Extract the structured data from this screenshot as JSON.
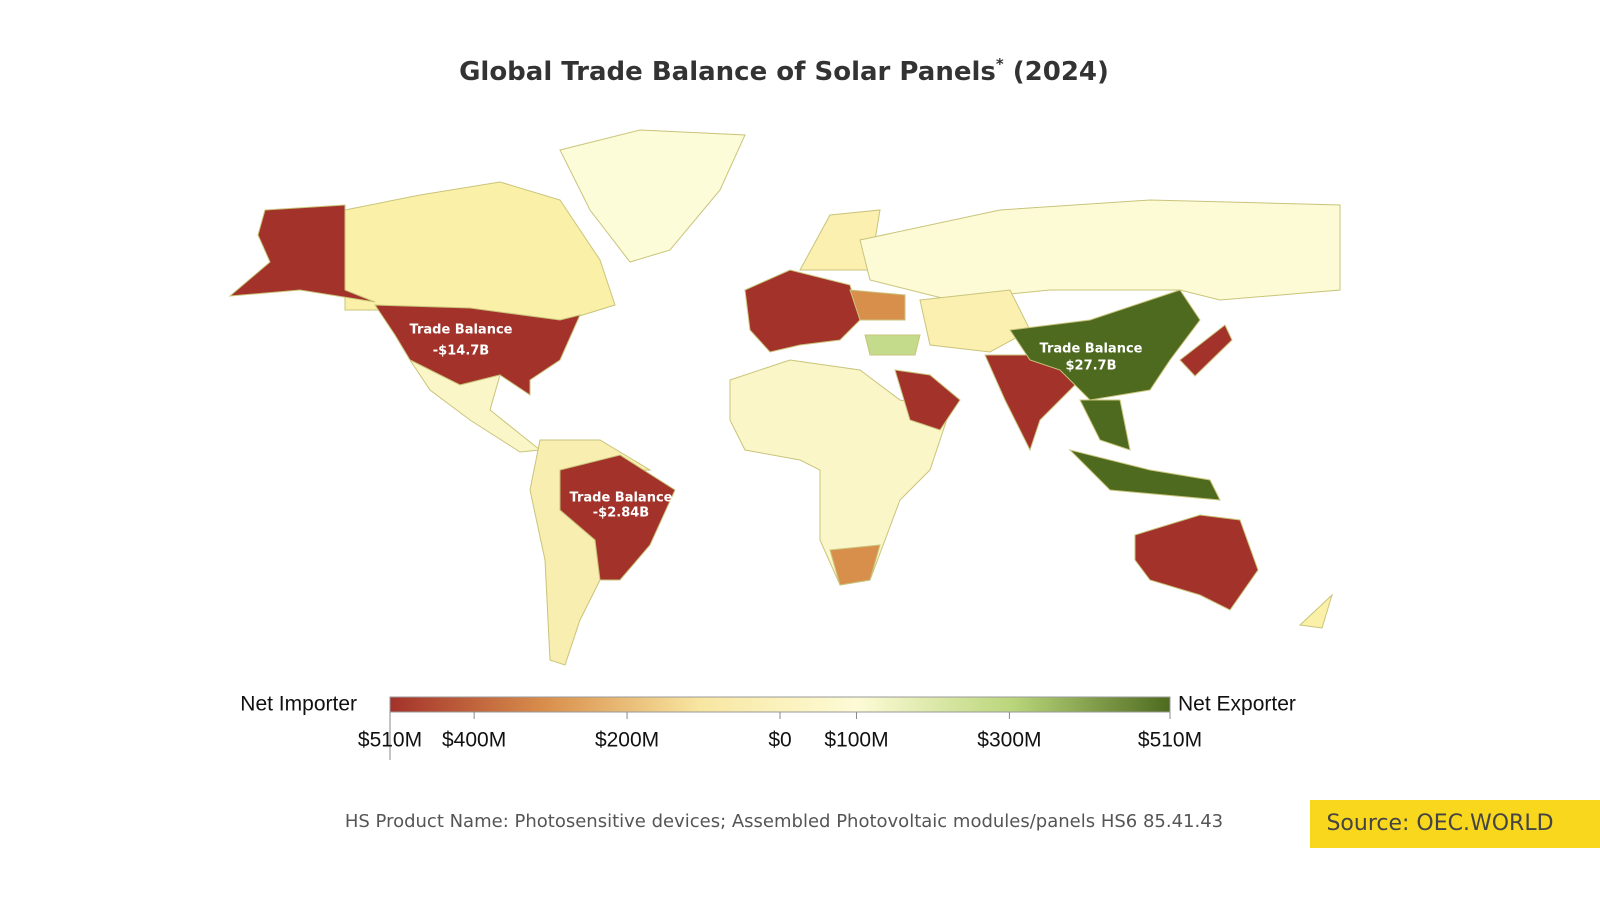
{
  "header": {
    "title": "Global Trade Balance of Solar Panels",
    "title_mark": "*",
    "title_year": "(2024)"
  },
  "annotations": [
    {
      "title": "Trade Balance",
      "value": "-$14.7B"
    },
    {
      "title": "Trade Balance",
      "value": "$27.7B"
    },
    {
      "title": "Trade Balance",
      "value": "-$2.84B"
    }
  ],
  "legend": {
    "low_label": "Net Importer",
    "high_label": "Net Exporter",
    "range": [
      -510,
      510
    ],
    "ticks": [
      {
        "value": -510,
        "label": "$510M"
      },
      {
        "value": -400,
        "label": "$400M"
      },
      {
        "value": -200,
        "label": "$200M"
      },
      {
        "value": 0,
        "label": "$0"
      },
      {
        "value": 100,
        "label": "$100M"
      },
      {
        "value": 300,
        "label": "$300M"
      },
      {
        "value": 510,
        "label": "$510M"
      }
    ],
    "colors": [
      "#a3322a",
      "#d98f4c",
      "#f8e7a2",
      "#fdfbd6",
      "#b9d57a",
      "#4e6a1e"
    ]
  },
  "footnote": "HS Product Name: Photosensitive devices; Assembled Photovoltaic modules/panels HS6 85.41.43",
  "source": "Source: OEC.WORLD"
}
